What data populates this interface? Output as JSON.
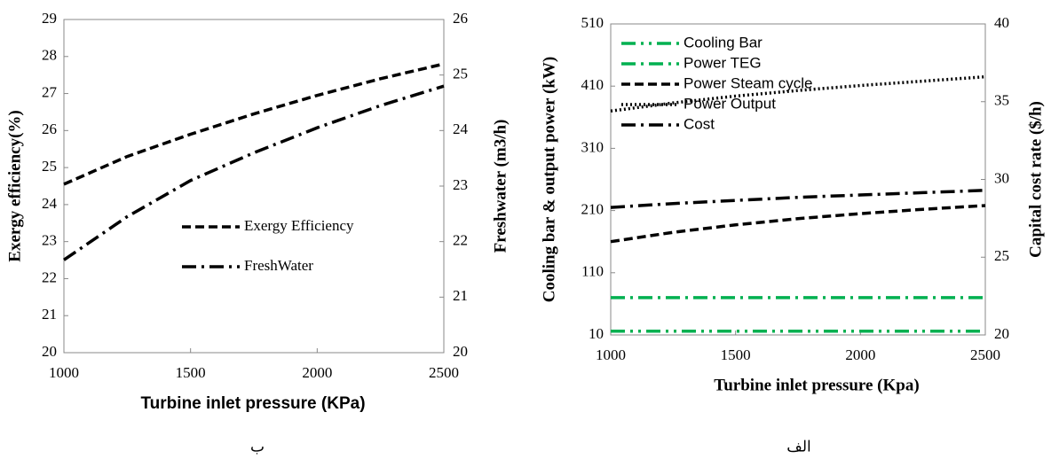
{
  "chart_data": [
    {
      "type": "line",
      "caption": "ب",
      "xlabel": "Turbine inlet pressure (KPa)",
      "ylabel": "Exergy efficiency(%)",
      "y2label": "Freshwater (m3/h)",
      "x": [
        1000,
        1250,
        1500,
        1750,
        2000,
        2250,
        2500
      ],
      "xlim": [
        1000,
        2500
      ],
      "xticks": [
        1000,
        1500,
        2000,
        2500
      ],
      "ylim": [
        20,
        29
      ],
      "yticks": [
        20,
        21,
        22,
        23,
        24,
        25,
        26,
        27,
        28,
        29
      ],
      "y2lim": [
        20,
        26
      ],
      "y2ticks": [
        20,
        21,
        22,
        23,
        24,
        25,
        26
      ],
      "legend": "lower right",
      "series": [
        {
          "name": "Exergy Efficiency",
          "color": "#000000",
          "dash": "dashed",
          "values": [
            24.55,
            25.3,
            25.9,
            26.45,
            26.95,
            27.4,
            27.8
          ]
        },
        {
          "name": "FreshWater",
          "color": "#000000",
          "dash": "dashdot",
          "axis": "y2",
          "values": [
            21.67,
            22.45,
            23.1,
            23.6,
            24.05,
            24.45,
            24.8
          ]
        }
      ]
    },
    {
      "type": "line",
      "caption": "الف",
      "xlabel": "Turbine  inlet pressure (Kpa)",
      "ylabel": "Cooling bar & output power (kW)",
      "y2label": "Capital cost rate ($/h)",
      "x": [
        1000,
        1250,
        1500,
        1750,
        2000,
        2250,
        2500
      ],
      "xlim": [
        1000,
        2500
      ],
      "xticks": [
        1000,
        1500,
        2000,
        2500
      ],
      "ylim": [
        10,
        510
      ],
      "yticks": [
        10,
        110,
        210,
        310,
        410,
        510
      ],
      "y2lim": [
        20,
        40
      ],
      "y2ticks": [
        20,
        25,
        30,
        35,
        40
      ],
      "legend": "upper left",
      "series": [
        {
          "name": "Cooling Bar",
          "color": "#00b050",
          "dash": "dashdotdot",
          "values": [
            16,
            16,
            16,
            16,
            16,
            16,
            16
          ]
        },
        {
          "name": "Power TEG",
          "color": "#00b050",
          "dash": "dashdot",
          "values": [
            70,
            70,
            70,
            70,
            70,
            70,
            70
          ]
        },
        {
          "name": "Power  Steam cycle",
          "color": "#000000",
          "dash": "dashed",
          "values": [
            160,
            175,
            187,
            197,
            205,
            212,
            218
          ]
        },
        {
          "name": "Power Output",
          "color": "#000000",
          "dash": "dotted",
          "values": [
            370,
            383,
            394,
            403,
            411,
            418,
            425
          ]
        },
        {
          "name": "Cost",
          "color": "#000000",
          "dash": "dashdot",
          "axis": "y2",
          "values": [
            28.2,
            28.45,
            28.65,
            28.85,
            29.0,
            29.15,
            29.3
          ]
        }
      ]
    }
  ]
}
